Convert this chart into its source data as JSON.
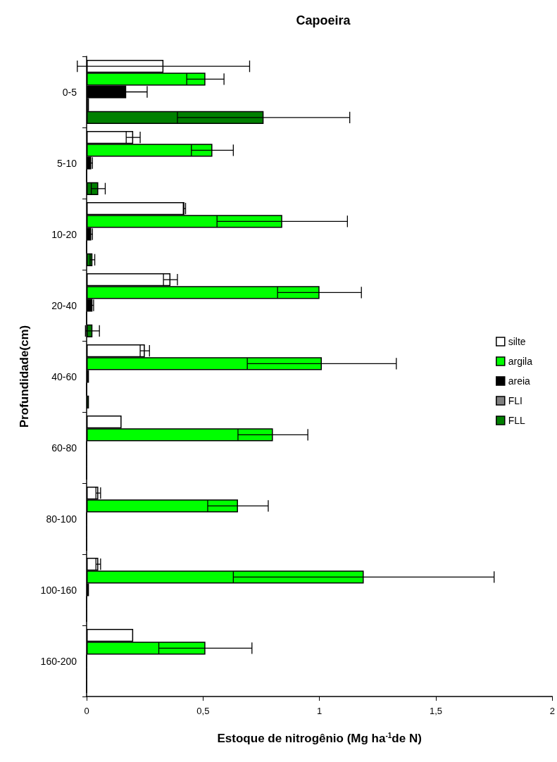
{
  "chart_data": {
    "type": "bar",
    "orientation": "horizontal",
    "title": "Capoeira",
    "xlabel": "Estoque de nitrogênio (Mg ha$^{-1}$de N)",
    "ylabel": "Profundidade(cm)",
    "categories": [
      "0-5",
      "5-10",
      "10-20",
      "20-40",
      "40-60",
      "60-80",
      "80-100",
      "100-160",
      "160-200"
    ],
    "series": [
      {
        "name": "silte",
        "color": "#ffffff",
        "values": [
          0.33,
          0.2,
          0.42,
          0.36,
          0.25,
          0.15,
          0.05,
          0.05,
          0.2
        ],
        "errors": [
          0.37,
          0.03,
          0.005,
          0.03,
          0.02,
          null,
          0.01,
          0.01,
          null
        ]
      },
      {
        "name": "argila",
        "color": "#00ff00",
        "values": [
          0.51,
          0.54,
          0.84,
          1.0,
          1.01,
          0.8,
          0.65,
          1.19,
          0.51
        ],
        "errors": [
          0.08,
          0.09,
          0.28,
          0.18,
          0.32,
          0.15,
          0.13,
          0.56,
          0.2
        ]
      },
      {
        "name": "areia",
        "color": "#000000",
        "values": [
          0.17,
          0.02,
          0.02,
          0.025,
          0.01,
          0,
          0,
          0.01,
          0
        ],
        "errors": [
          0.09,
          0.005,
          0.005,
          0.005,
          null,
          null,
          null,
          null,
          null
        ]
      },
      {
        "name": "FLI",
        "color": "#808080",
        "values": [
          0.01,
          0,
          0,
          0,
          0,
          0,
          0,
          0,
          0
        ]
      },
      {
        "name": "FLL",
        "color": "#008000",
        "values": [
          0.76,
          0.05,
          0.025,
          0.025,
          0.01,
          0,
          0,
          0,
          0
        ],
        "errors": [
          0.37,
          0.03,
          0.01,
          0.03,
          null,
          null,
          null,
          null,
          null
        ]
      }
    ],
    "xlim": [
      0,
      2
    ],
    "xticks": [
      0,
      {
        "value": 0.5,
        "label": "0,5"
      },
      1,
      {
        "value": 1.5,
        "label": "1,5"
      },
      2
    ],
    "grid": false,
    "legend": "right"
  }
}
